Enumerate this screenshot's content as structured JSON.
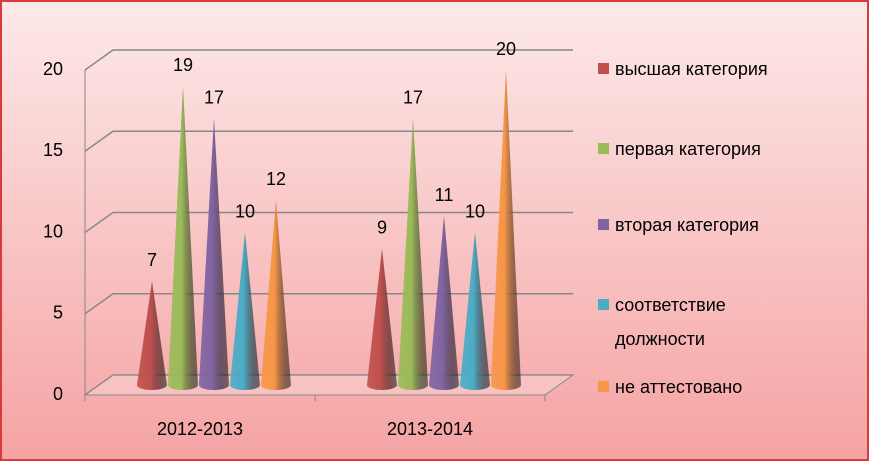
{
  "chart_data": {
    "type": "cone",
    "categories": [
      "2012-2013",
      "2013-2014"
    ],
    "series": [
      {
        "name": "высшая категория",
        "color": "#c0504d",
        "values": [
          7,
          9
        ]
      },
      {
        "name": "первая категория",
        "color": "#9bbb59",
        "values": [
          19,
          17
        ]
      },
      {
        "name": "вторая категория",
        "color": "#8064a2",
        "values": [
          17,
          11
        ]
      },
      {
        "name": "соответствие должности",
        "color": "#4bacc6",
        "values": [
          10,
          10
        ]
      },
      {
        "name": "не аттестовано",
        "color": "#f79646",
        "values": [
          12,
          20
        ]
      }
    ],
    "ylim": [
      0,
      20
    ],
    "yticks": [
      0,
      5,
      10,
      15,
      20
    ],
    "grid": true,
    "legend": "right",
    "data_labels": true
  }
}
